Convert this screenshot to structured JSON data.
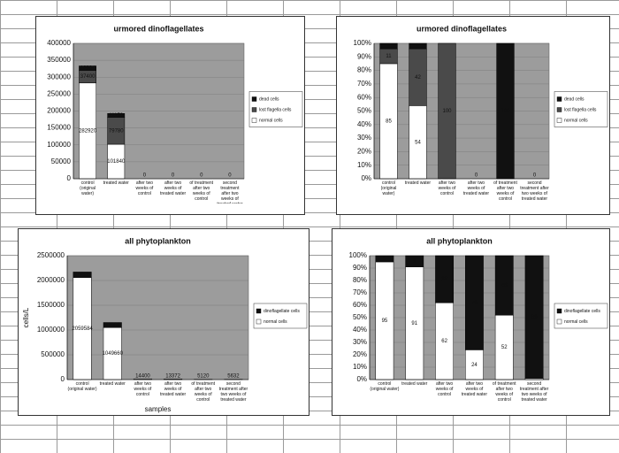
{
  "chart_data": [
    {
      "type": "bar",
      "stacked": true,
      "title": "urmored dinoflagellates",
      "categories": [
        "control (original water)",
        "treated water",
        "after two weeks of control",
        "after two weeks of treated water",
        "of treatment after two weeks of control",
        "second treatment after two weeks of treated water"
      ],
      "series": [
        {
          "name": "normal cells",
          "color": "#ffffff",
          "values": [
            282920,
            101840,
            0,
            0,
            0,
            0
          ]
        },
        {
          "name": "lost flagella cells",
          "color": "#4a4a4a",
          "values": [
            37400,
            79780,
            0,
            0,
            0,
            0
          ]
        },
        {
          "name": "dead cells",
          "color": "#111111",
          "values": [
            12984,
            11150,
            0,
            0,
            0,
            0
          ]
        }
      ],
      "ylim": [
        0,
        400000
      ],
      "yticks": [
        0,
        50000,
        100000,
        150000,
        200000,
        250000,
        300000,
        350000,
        400000
      ],
      "legend": "right"
    },
    {
      "type": "bar",
      "stacked": true,
      "title": "urmored dinoflagellates",
      "categories": [
        "control (original water)",
        "treated water",
        "after two weeks of control",
        "after two weeks of treated water",
        "of treatment after two weeks of control",
        "second treatment after two weeks of treated water"
      ],
      "series": [
        {
          "name": "normal cells",
          "color": "#ffffff",
          "values": [
            85,
            54,
            0,
            0,
            0,
            0
          ]
        },
        {
          "name": "lost flagella cells",
          "color": "#4a4a4a",
          "values": [
            11,
            42,
            100,
            0,
            0,
            0
          ]
        },
        {
          "name": "dead cells",
          "color": "#111111",
          "values": [
            4,
            4,
            0,
            0,
            100,
            0
          ]
        }
      ],
      "ylim": [
        0,
        100
      ],
      "yticks": [
        {
          "value": 0,
          "label": "0%"
        },
        {
          "value": 10,
          "label": "10%"
        },
        {
          "value": 20,
          "label": "20%"
        },
        {
          "value": 30,
          "label": "30%"
        },
        {
          "value": 40,
          "label": "40%"
        },
        {
          "value": 50,
          "label": "50%"
        },
        {
          "value": 60,
          "label": "60%"
        },
        {
          "value": 70,
          "label": "70%"
        },
        {
          "value": 80,
          "label": "80%"
        },
        {
          "value": 90,
          "label": "90%"
        },
        {
          "value": 100,
          "label": "100%"
        }
      ],
      "legend": "right"
    },
    {
      "type": "bar",
      "stacked": true,
      "title": "all phytoplankton",
      "ylabel": "cells/L",
      "xlabel": "samples",
      "categories": [
        "control (original water)",
        "treated water",
        "after two weeks of control",
        "after two weeks of treated water",
        "of treatment after two weeks of control",
        "second treatment after two weeks of treated water"
      ],
      "series": [
        {
          "name": "normal cells",
          "color": "#ffffff",
          "values": [
            2059584,
            1049660,
            14400,
            13372,
            5120,
            5632
          ]
        },
        {
          "name": "dinoflagellate cells",
          "color": "#111111",
          "values": [
            111436,
            101770,
            0,
            0,
            0,
            0
          ]
        }
      ],
      "ylim": [
        0,
        2500000
      ],
      "yticks": [
        0,
        500000,
        1000000,
        1500000,
        2000000,
        2500000
      ],
      "legend": "right"
    },
    {
      "type": "bar",
      "stacked": true,
      "title": "all phytoplankton",
      "categories": [
        "control (original water)",
        "treated water",
        "after two weeks of control",
        "after two weeks of treated water",
        "of treatment after two weeks of control",
        "second treatment after two weeks of treated water"
      ],
      "series": [
        {
          "name": "normal cells",
          "color": "#ffffff",
          "values": [
            95,
            91,
            62,
            24,
            52,
            1
          ]
        },
        {
          "name": "dinoflagellate cells",
          "color": "#111111",
          "values": [
            5,
            9,
            38,
            76,
            48,
            99
          ]
        }
      ],
      "ylim": [
        0,
        100
      ],
      "yticks": [
        {
          "value": 0,
          "label": "0%"
        },
        {
          "value": 10,
          "label": "10%"
        },
        {
          "value": 20,
          "label": "20%"
        },
        {
          "value": 30,
          "label": "30%"
        },
        {
          "value": 40,
          "label": "40%"
        },
        {
          "value": 50,
          "label": "50%"
        },
        {
          "value": 60,
          "label": "60%"
        },
        {
          "value": 70,
          "label": "70%"
        },
        {
          "value": 80,
          "label": "80%"
        },
        {
          "value": 90,
          "label": "90%"
        },
        {
          "value": 100,
          "label": "100%"
        }
      ],
      "legend": "right"
    }
  ]
}
